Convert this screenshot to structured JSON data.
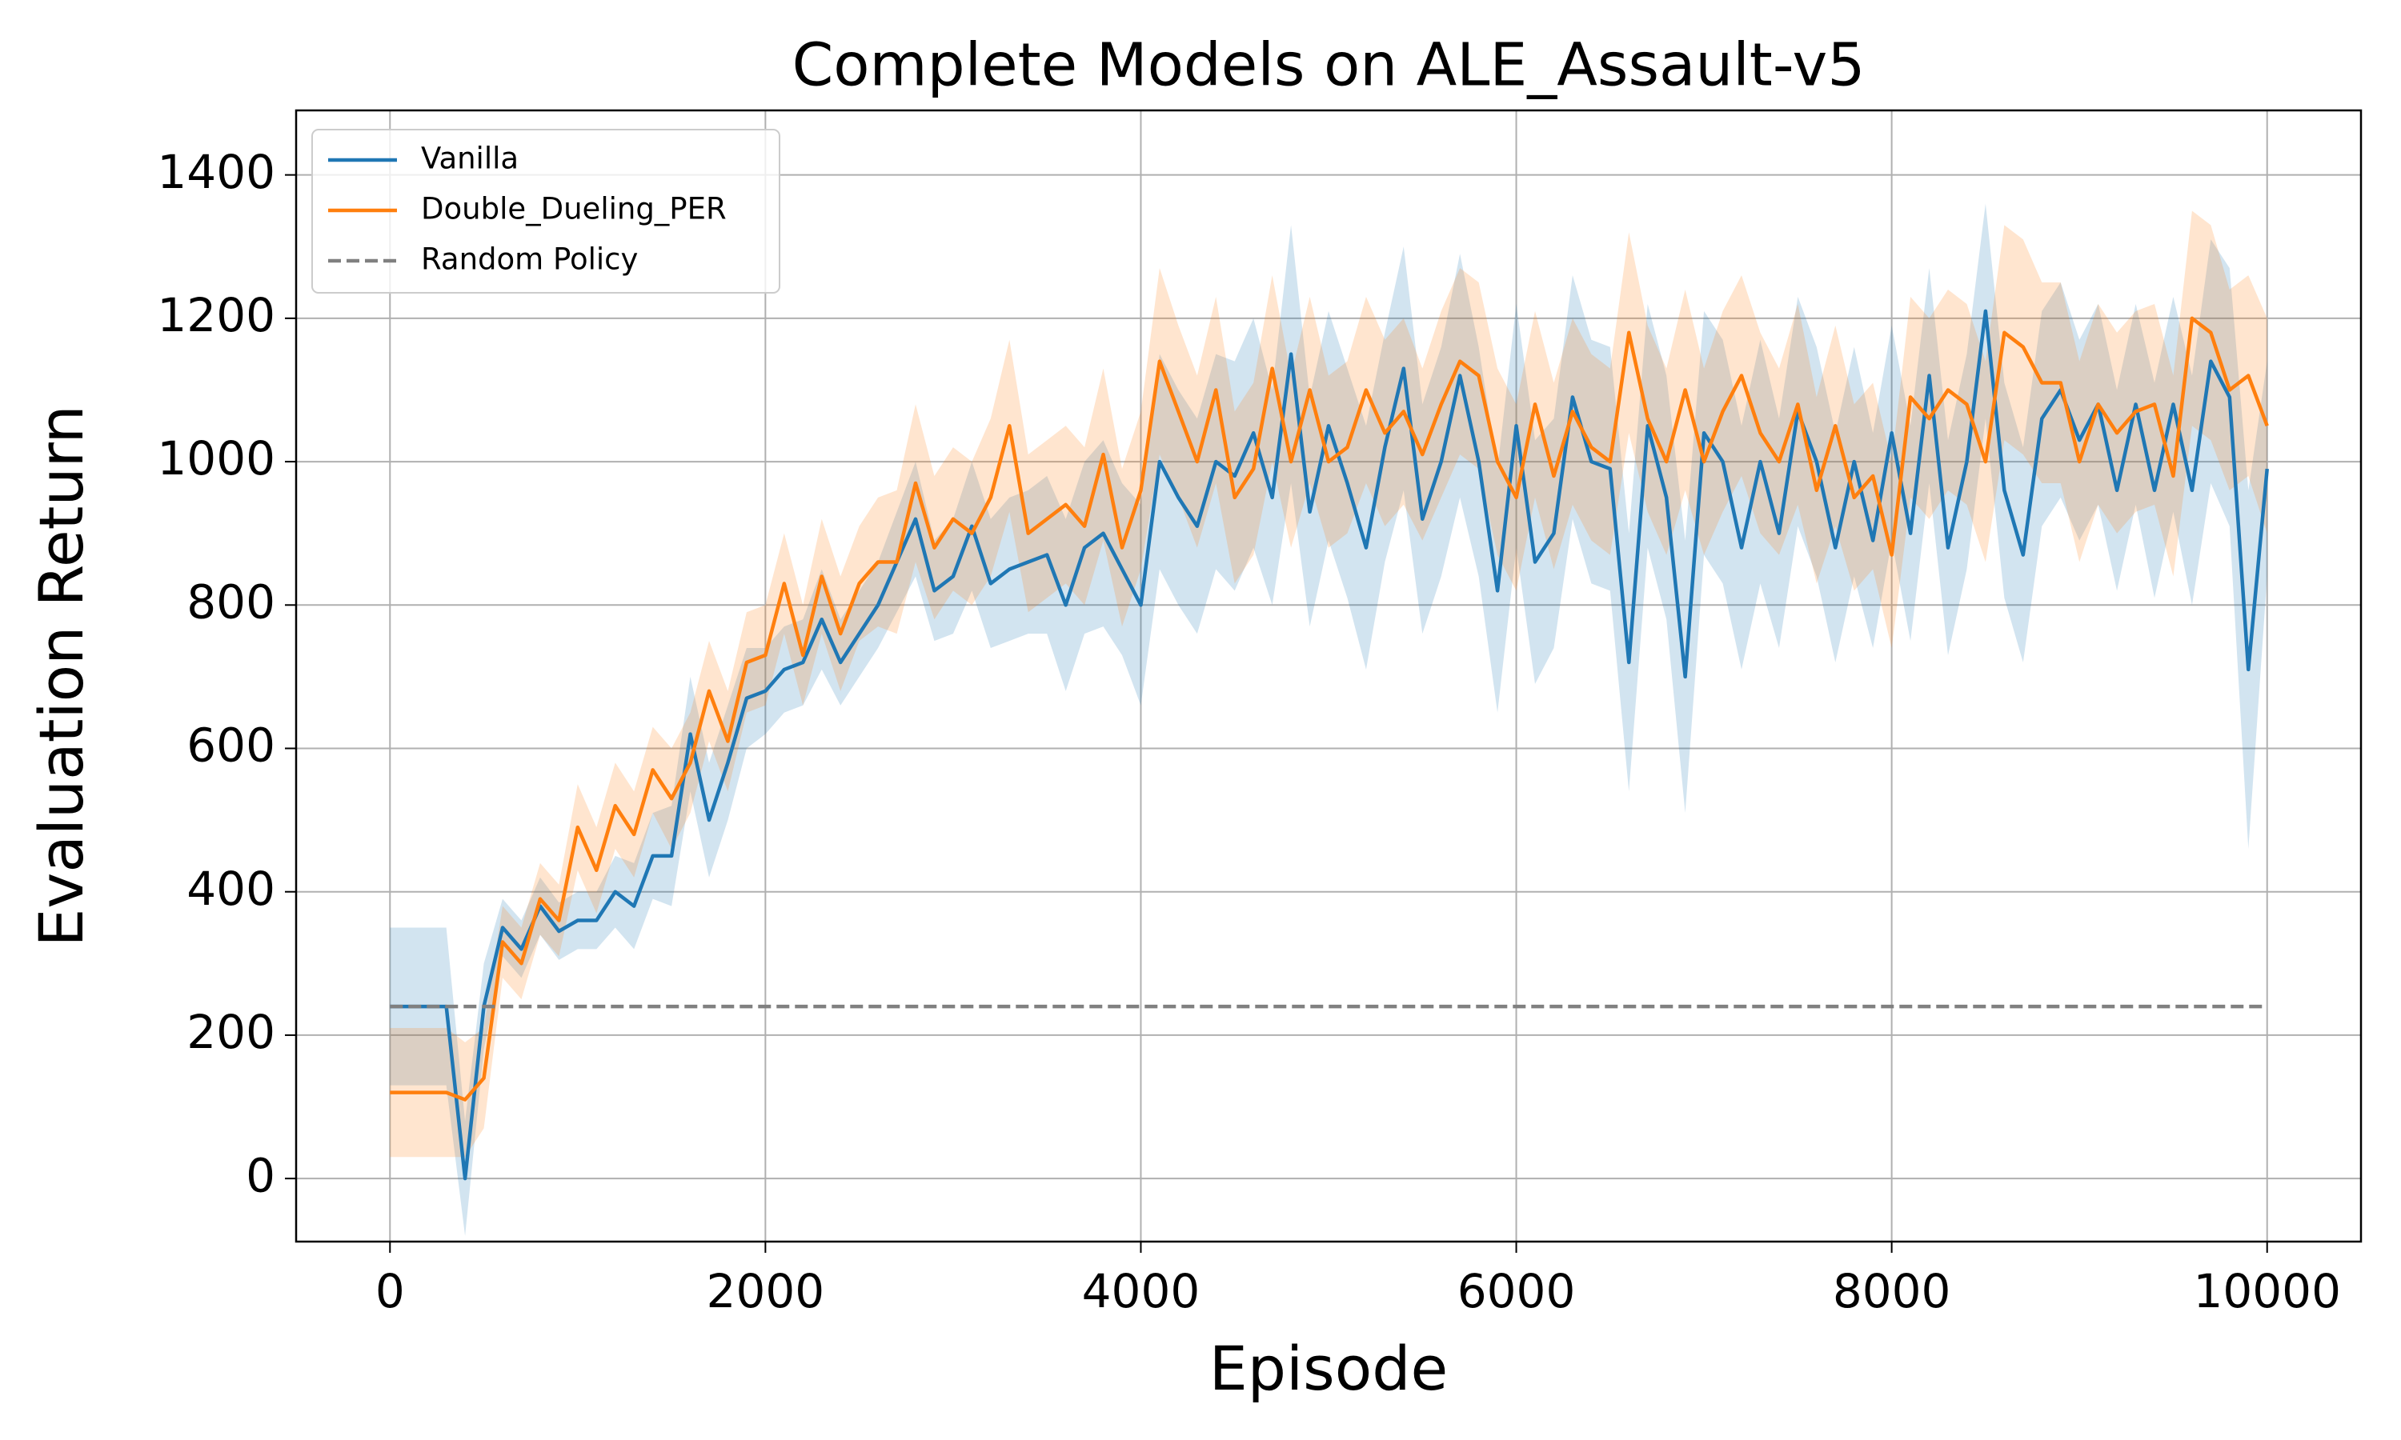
{
  "chart_data": {
    "type": "line",
    "title": "Complete Models on ALE_Assault-v5",
    "x_label": "Episode",
    "y_label": "Evaluation Return",
    "x": [
      0,
      100,
      200,
      300,
      400,
      500,
      600,
      700,
      800,
      900,
      1000,
      1100,
      1200,
      1300,
      1400,
      1500,
      1600,
      1700,
      1800,
      1900,
      2000,
      2100,
      2200,
      2300,
      2400,
      2500,
      2600,
      2700,
      2800,
      2900,
      3000,
      3100,
      3200,
      3300,
      3400,
      3500,
      3600,
      3700,
      3800,
      3900,
      4000,
      4100,
      4200,
      4300,
      4400,
      4500,
      4600,
      4700,
      4800,
      4900,
      5000,
      5100,
      5200,
      5300,
      5400,
      5500,
      5600,
      5700,
      5800,
      5900,
      6000,
      6100,
      6200,
      6300,
      6400,
      6500,
      6600,
      6700,
      6800,
      6900,
      7000,
      7100,
      7200,
      7300,
      7400,
      7500,
      7600,
      7700,
      7800,
      7900,
      8000,
      8100,
      8200,
      8300,
      8400,
      8500,
      8600,
      8700,
      8800,
      8900,
      9000,
      9100,
      9200,
      9300,
      9400,
      9500,
      9600,
      9700,
      9800,
      9900,
      10000
    ],
    "series": [
      {
        "name": "Vanilla",
        "color": "#1f77b4",
        "values": [
          240,
          240,
          240,
          240,
          0,
          240,
          350,
          320,
          380,
          345,
          360,
          360,
          400,
          380,
          450,
          450,
          620,
          500,
          580,
          670,
          680,
          710,
          720,
          780,
          720,
          760,
          800,
          860,
          920,
          820,
          840,
          910,
          830,
          850,
          860,
          870,
          800,
          880,
          900,
          850,
          800,
          1000,
          950,
          910,
          1000,
          980,
          1040,
          950,
          1150,
          930,
          1050,
          970,
          880,
          1020,
          1130,
          920,
          1000,
          1120,
          1000,
          820,
          1050,
          860,
          900,
          1090,
          1000,
          990,
          720,
          1050,
          950,
          700,
          1040,
          1000,
          880,
          1000,
          900,
          1070,
          1000,
          880,
          1000,
          890,
          1040,
          900,
          1120,
          880,
          1000,
          1210,
          960,
          870,
          1060,
          1100,
          1030,
          1080,
          960,
          1080,
          960,
          1080,
          960,
          1140,
          1090,
          710,
          990
        ],
        "std": [
          110,
          110,
          110,
          110,
          80,
          60,
          40,
          40,
          40,
          40,
          40,
          40,
          50,
          60,
          60,
          70,
          80,
          80,
          80,
          70,
          60,
          60,
          60,
          70,
          60,
          60,
          60,
          70,
          80,
          70,
          80,
          90,
          90,
          100,
          100,
          110,
          120,
          120,
          130,
          120,
          140,
          150,
          150,
          150,
          150,
          160,
          160,
          150,
          180,
          160,
          160,
          160,
          170,
          160,
          170,
          160,
          160,
          170,
          160,
          170,
          170,
          170,
          160,
          170,
          170,
          170,
          180,
          170,
          170,
          190,
          170,
          170,
          170,
          170,
          160,
          160,
          160,
          160,
          160,
          150,
          150,
          150,
          150,
          150,
          150,
          150,
          150,
          150,
          150,
          150,
          140,
          140,
          140,
          140,
          150,
          150,
          160,
          170,
          180,
          250,
          150
        ]
      },
      {
        "name": "Double_Dueling_PER",
        "color": "#ff7f0e",
        "values": [
          120,
          120,
          120,
          120,
          110,
          140,
          330,
          300,
          390,
          360,
          490,
          430,
          520,
          480,
          570,
          530,
          580,
          680,
          610,
          720,
          730,
          830,
          730,
          840,
          760,
          830,
          860,
          860,
          970,
          880,
          920,
          900,
          950,
          1050,
          900,
          920,
          940,
          910,
          1010,
          880,
          960,
          1140,
          1070,
          1000,
          1100,
          950,
          990,
          1130,
          1000,
          1100,
          1000,
          1020,
          1100,
          1040,
          1070,
          1010,
          1080,
          1140,
          1120,
          1000,
          950,
          1080,
          980,
          1070,
          1020,
          1000,
          1180,
          1060,
          1000,
          1100,
          1000,
          1070,
          1120,
          1040,
          1000,
          1080,
          960,
          1050,
          950,
          980,
          870,
          1090,
          1060,
          1100,
          1080,
          1000,
          1180,
          1160,
          1110,
          1110,
          1000,
          1080,
          1040,
          1070,
          1080,
          980,
          1200,
          1180,
          1100,
          1120,
          1050
        ],
        "std": [
          90,
          90,
          90,
          90,
          80,
          70,
          50,
          50,
          50,
          50,
          60,
          60,
          60,
          60,
          60,
          70,
          70,
          70,
          70,
          70,
          70,
          70,
          70,
          80,
          80,
          80,
          90,
          100,
          110,
          100,
          100,
          100,
          110,
          120,
          110,
          110,
          110,
          110,
          120,
          110,
          110,
          130,
          120,
          120,
          130,
          120,
          120,
          130,
          120,
          130,
          120,
          120,
          130,
          130,
          130,
          120,
          130,
          130,
          130,
          130,
          130,
          130,
          130,
          130,
          130,
          130,
          140,
          130,
          130,
          140,
          130,
          140,
          140,
          140,
          130,
          140,
          130,
          140,
          130,
          130,
          130,
          140,
          140,
          140,
          140,
          140,
          150,
          150,
          140,
          140,
          140,
          140,
          140,
          140,
          140,
          140,
          150,
          150,
          140,
          140,
          150
        ]
      }
    ],
    "hline": {
      "name": "Random Policy",
      "value": 240,
      "color": "#808080"
    },
    "xlim": [
      -500,
      10500
    ],
    "ylim": [
      -88,
      1490
    ],
    "xticks": [
      0,
      2000,
      4000,
      6000,
      8000,
      10000
    ],
    "yticks": [
      0,
      200,
      400,
      600,
      800,
      1000,
      1200,
      1400
    ],
    "grid": true,
    "legend": "upper left"
  }
}
